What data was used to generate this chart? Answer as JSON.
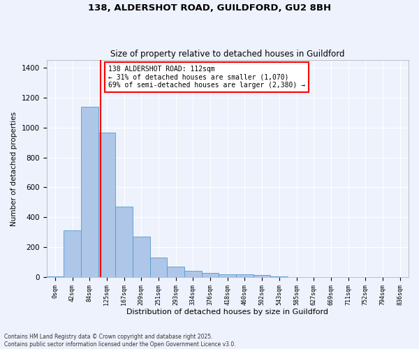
{
  "title1": "138, ALDERSHOT ROAD, GUILDFORD, GU2 8BH",
  "title2": "Size of property relative to detached houses in Guildford",
  "xlabel": "Distribution of detached houses by size in Guildford",
  "ylabel": "Number of detached properties",
  "bar_values": [
    5,
    315,
    1140,
    965,
    470,
    270,
    130,
    70,
    45,
    30,
    20,
    20,
    15,
    5,
    2,
    1,
    1,
    0,
    0,
    0,
    0
  ],
  "bar_labels": [
    "0sqm",
    "42sqm",
    "84sqm",
    "125sqm",
    "167sqm",
    "209sqm",
    "251sqm",
    "293sqm",
    "334sqm",
    "376sqm",
    "418sqm",
    "460sqm",
    "502sqm",
    "543sqm",
    "585sqm",
    "627sqm",
    "669sqm",
    "711sqm",
    "752sqm",
    "794sqm",
    "836sqm"
  ],
  "bar_color": "#aec6e8",
  "bar_edge_color": "#5599cc",
  "vline_x": 2.62,
  "vline_color": "red",
  "annotation_title": "138 ALDERSHOT ROAD: 112sqm",
  "annotation_line1": "← 31% of detached houses are smaller (1,070)",
  "annotation_line2": "69% of semi-detached houses are larger (2,380) →",
  "annotation_box_color": "white",
  "annotation_box_edge": "red",
  "ylim": [
    0,
    1450
  ],
  "yticks": [
    0,
    200,
    400,
    600,
    800,
    1000,
    1200,
    1400
  ],
  "footer1": "Contains HM Land Registry data © Crown copyright and database right 2025.",
  "footer2": "Contains public sector information licensed under the Open Government Licence v3.0.",
  "bg_color": "#eef2fc",
  "grid_color": "white"
}
